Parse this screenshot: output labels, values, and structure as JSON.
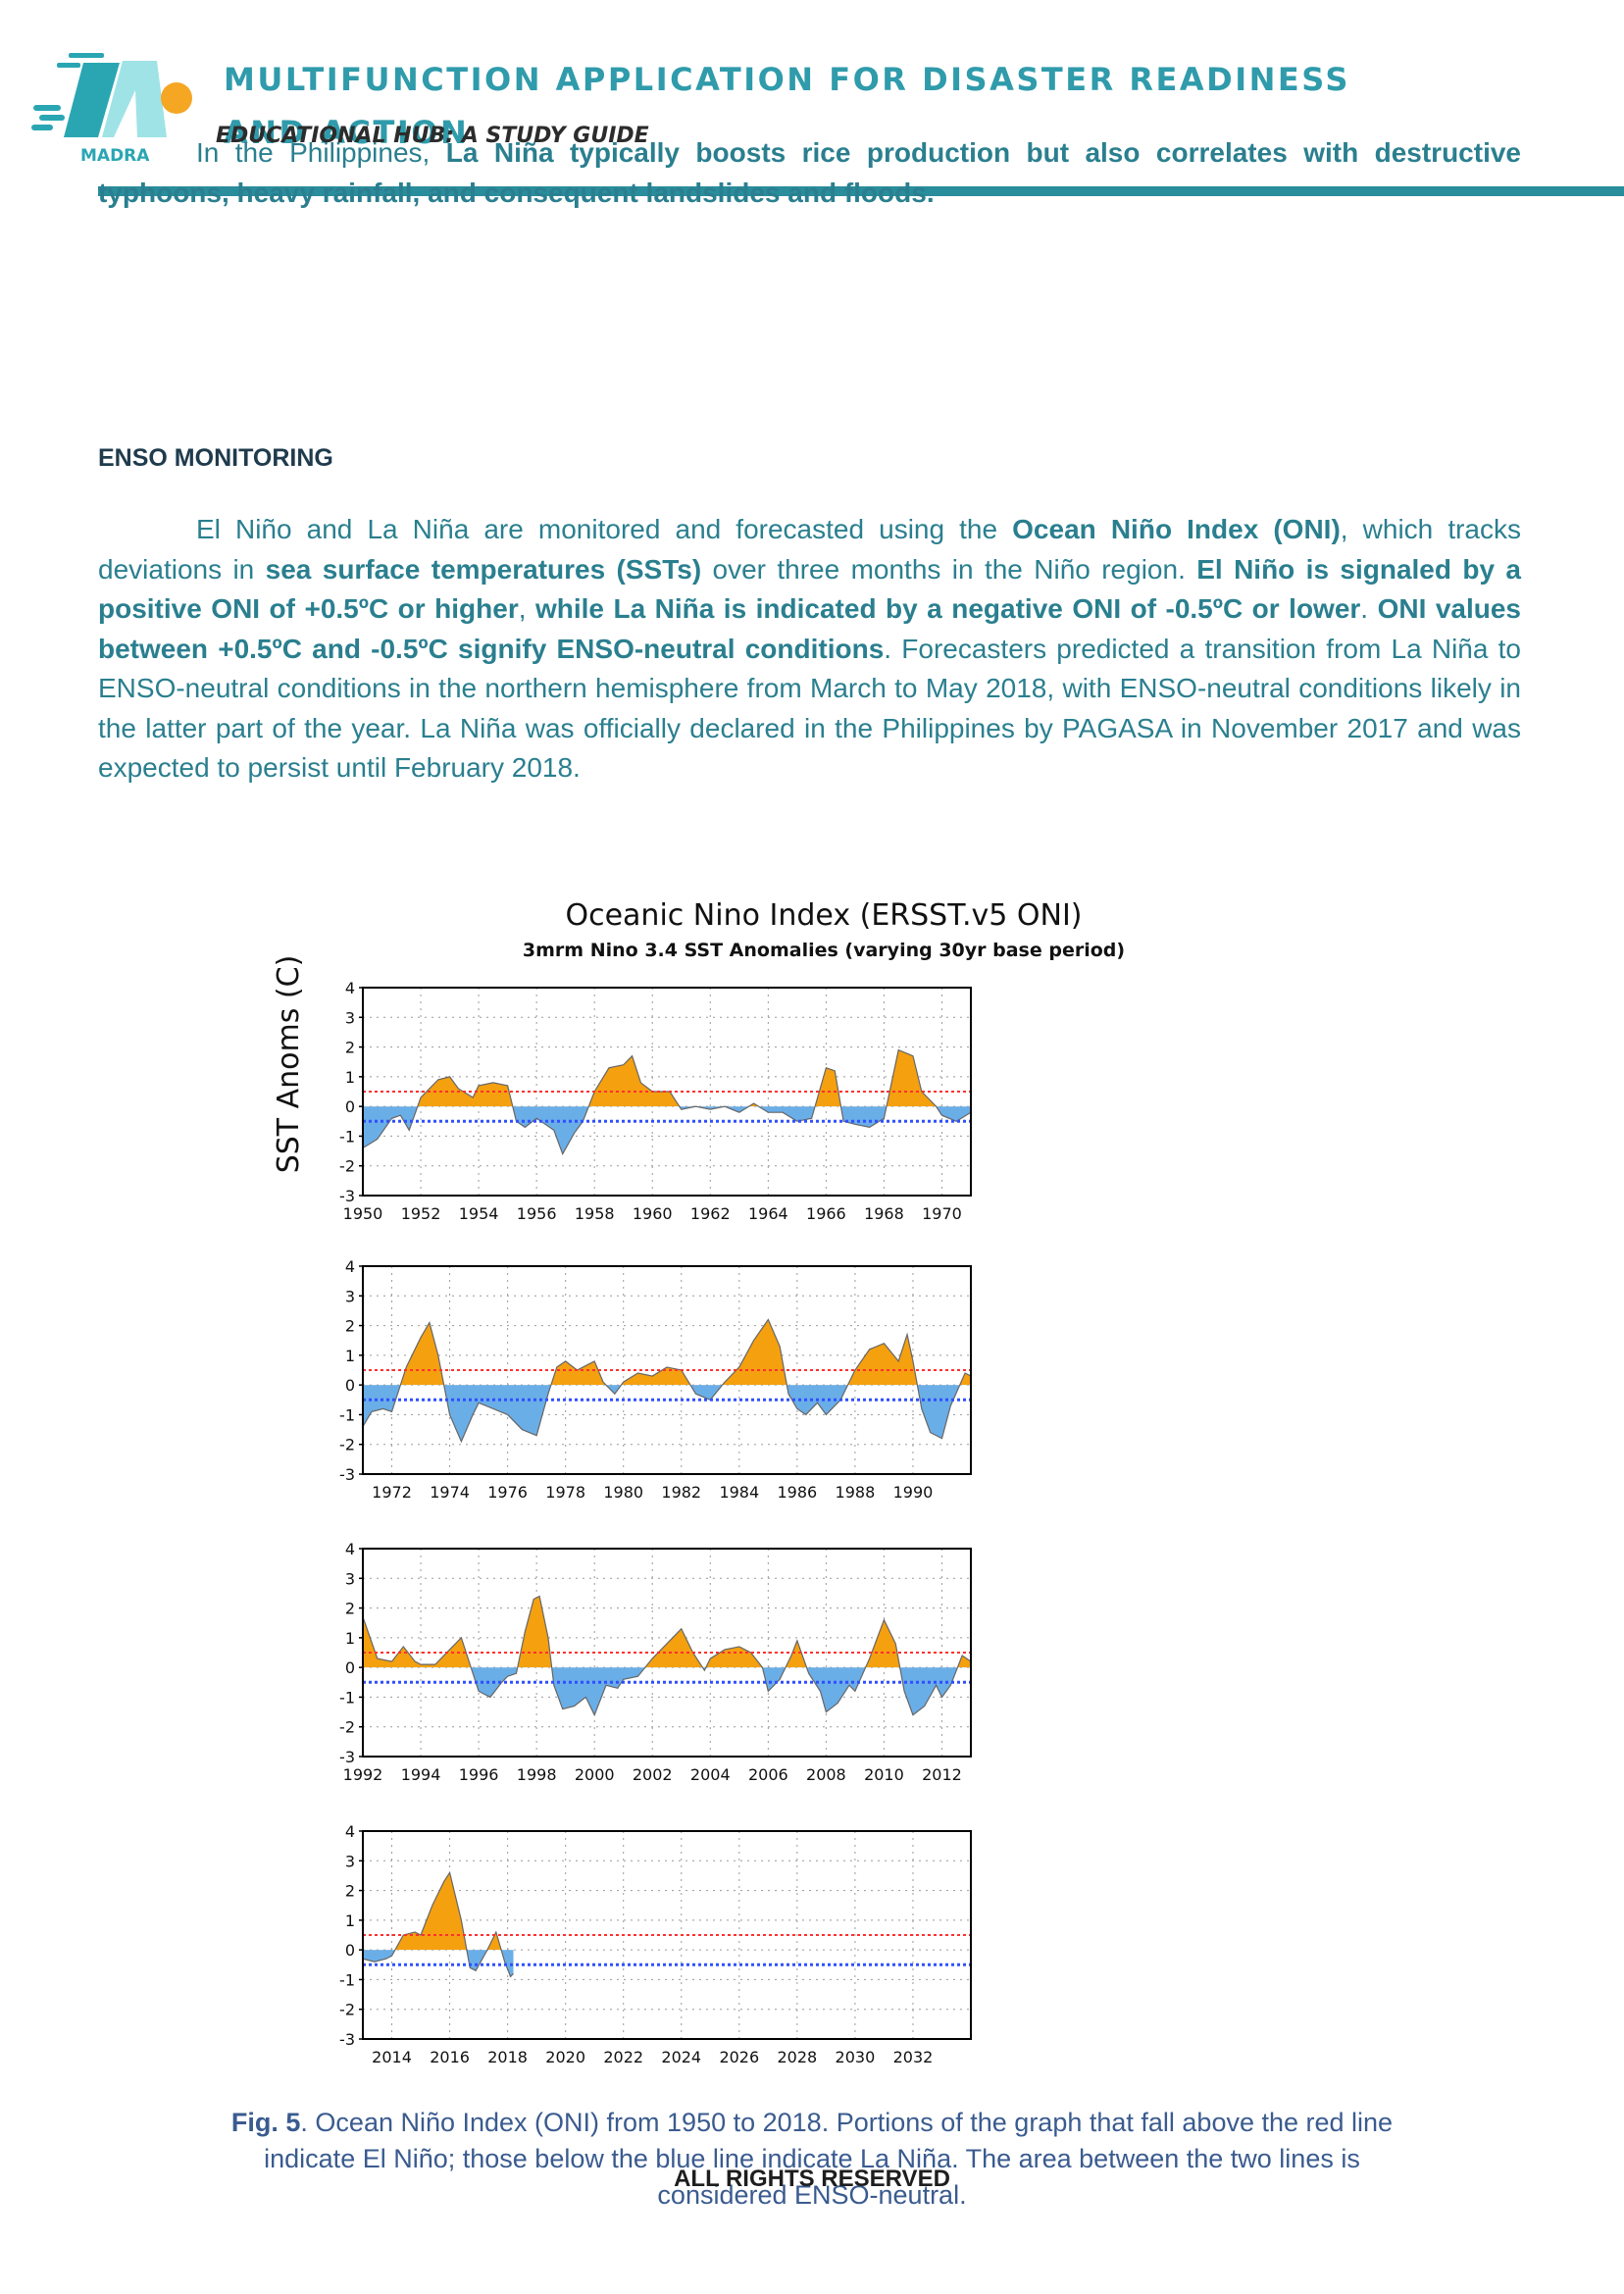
{
  "header": {
    "logo_text": "MADRA",
    "app_title_line1": "MULTIFUNCTION APPLICATION FOR DISASTER READINESS",
    "app_title_line2": "AND ACTION",
    "subtitle": "EDUCATIONAL HUB: A STUDY GUIDE"
  },
  "intro": {
    "text_1": "In the Philippines, ",
    "text_bold": "La Niña typically boosts rice production but also correlates with destructive typhoons, heavy rainfall, and consequent landslides and floods."
  },
  "section": {
    "heading": "ENSO MONITORING",
    "p1": "El Niño and La Niña are monitored and forecasted using the ",
    "b1": "Ocean Niño Index (ONI)",
    "p2": ", which tracks deviations in ",
    "b2": "sea surface temperatures (SSTs)",
    "p3": " over three months in the Niño region. ",
    "b3": "El Niño is signaled by a positive ONI of +0.5ºC or higher",
    "p4": ", ",
    "b4": "while La Niña is indicated by a negative ONI of -0.5ºC or lower",
    "p5": ". ",
    "b5": "ONI values between +0.5ºC and -0.5ºC signify ENSO-neutral conditions",
    "p6": ". Forecasters predicted a transition from La Niña to ENSO-neutral conditions in the northern hemisphere from March to May 2018, with ENSO-neutral conditions likely in the latter part of the year. La Niña was officially declared in the Philippines by PAGASA in November 2017 and was expected to persist until February 2018."
  },
  "chart_data": {
    "type": "area",
    "title": "Oceanic Nino Index (ERSST.v5 ONI)",
    "subtitle": "3mrm Nino 3.4 SST Anomalies (varying 30yr base period)",
    "ylabel": "SST Anoms (C)",
    "ylim": [
      -3,
      4
    ],
    "yticks": [
      "4",
      "3",
      "2",
      "1",
      "0",
      "-1",
      "-2",
      "-3"
    ],
    "grid": true,
    "thresholds": {
      "el_nino": 0.5,
      "la_nina": -0.5
    },
    "colors": {
      "positive": "#f5a00f",
      "negative": "#6aaee8",
      "el_nino_line": "#ff3030",
      "la_nina_line": "#3050ff"
    },
    "panels": [
      {
        "xlim": [
          1950,
          1971
        ],
        "xticks": [
          "1950",
          "1952",
          "1954",
          "1956",
          "1958",
          "1960",
          "1962",
          "1964",
          "1966",
          "1968",
          "1970"
        ],
        "points": [
          [
            1950,
            -1.4
          ],
          [
            1950.5,
            -1.1
          ],
          [
            1951,
            -0.4
          ],
          [
            1951.3,
            -0.3
          ],
          [
            1951.6,
            -0.8
          ],
          [
            1952,
            0.3
          ],
          [
            1952.6,
            0.9
          ],
          [
            1953,
            1.0
          ],
          [
            1953.3,
            0.6
          ],
          [
            1953.8,
            0.3
          ],
          [
            1954,
            0.7
          ],
          [
            1954.5,
            0.8
          ],
          [
            1955,
            0.7
          ],
          [
            1955.3,
            -0.5
          ],
          [
            1955.6,
            -0.7
          ],
          [
            1956,
            -0.4
          ],
          [
            1956.3,
            -0.6
          ],
          [
            1956.6,
            -0.8
          ],
          [
            1956.9,
            -1.6
          ],
          [
            1957.3,
            -0.9
          ],
          [
            1957.6,
            -0.5
          ],
          [
            1958,
            0.5
          ],
          [
            1958.5,
            1.3
          ],
          [
            1959,
            1.4
          ],
          [
            1959.3,
            1.7
          ],
          [
            1959.6,
            0.8
          ],
          [
            1960,
            0.5
          ],
          [
            1960.6,
            0.5
          ],
          [
            1961,
            -0.1
          ],
          [
            1961.5,
            0.0
          ],
          [
            1962,
            -0.1
          ],
          [
            1962.5,
            0.0
          ],
          [
            1963,
            -0.2
          ],
          [
            1963.5,
            0.1
          ],
          [
            1964,
            -0.2
          ],
          [
            1964.5,
            -0.2
          ],
          [
            1965,
            -0.5
          ],
          [
            1965.5,
            -0.4
          ],
          [
            1966,
            1.3
          ],
          [
            1966.3,
            1.2
          ],
          [
            1966.6,
            -0.5
          ],
          [
            1967,
            -0.6
          ],
          [
            1967.5,
            -0.7
          ],
          [
            1968,
            -0.4
          ],
          [
            1968.5,
            1.9
          ],
          [
            1969,
            1.7
          ],
          [
            1969.3,
            0.5
          ],
          [
            1969.8,
            0.0
          ],
          [
            1970,
            -0.3
          ],
          [
            1970.5,
            -0.5
          ],
          [
            1971,
            -0.2
          ],
          [
            1971,
            -0.1
          ]
        ]
      },
      {
        "xlim": [
          1971,
          1992
        ],
        "xticks": [
          "1972",
          "1974",
          "1976",
          "1978",
          "1980",
          "1982",
          "1984",
          "1986",
          "1988",
          "1990"
        ],
        "points": [
          [
            1971,
            -1.4
          ],
          [
            1971.3,
            -0.9
          ],
          [
            1971.7,
            -0.8
          ],
          [
            1972,
            -0.9
          ],
          [
            1972.5,
            0.6
          ],
          [
            1973,
            1.6
          ],
          [
            1973.3,
            2.1
          ],
          [
            1973.6,
            1.0
          ],
          [
            1974,
            -1.0
          ],
          [
            1974.4,
            -1.9
          ],
          [
            1974.8,
            -1.0
          ],
          [
            1975,
            -0.6
          ],
          [
            1975.5,
            -0.8
          ],
          [
            1976,
            -1.0
          ],
          [
            1976.5,
            -1.5
          ],
          [
            1977,
            -1.7
          ],
          [
            1977.4,
            -0.3
          ],
          [
            1977.7,
            0.6
          ],
          [
            1978,
            0.8
          ],
          [
            1978.4,
            0.5
          ],
          [
            1978.8,
            0.7
          ],
          [
            1979,
            0.8
          ],
          [
            1979.3,
            0.1
          ],
          [
            1979.7,
            -0.3
          ],
          [
            1980,
            0.1
          ],
          [
            1980.5,
            0.4
          ],
          [
            1981,
            0.3
          ],
          [
            1981.5,
            0.6
          ],
          [
            1982,
            0.5
          ],
          [
            1982.5,
            -0.3
          ],
          [
            1983,
            -0.5
          ],
          [
            1983.5,
            0.1
          ],
          [
            1984,
            0.6
          ],
          [
            1984.5,
            1.5
          ],
          [
            1985,
            2.2
          ],
          [
            1985.4,
            1.3
          ],
          [
            1985.7,
            -0.3
          ],
          [
            1986,
            -0.8
          ],
          [
            1986.3,
            -1.0
          ],
          [
            1986.7,
            -0.6
          ],
          [
            1987,
            -1.0
          ],
          [
            1987.5,
            -0.5
          ],
          [
            1988,
            0.5
          ],
          [
            1988.5,
            1.2
          ],
          [
            1989,
            1.4
          ],
          [
            1989.5,
            0.8
          ],
          [
            1989.8,
            1.7
          ],
          [
            1990,
            0.8
          ],
          [
            1990.3,
            -0.8
          ],
          [
            1990.6,
            -1.6
          ],
          [
            1991,
            -1.8
          ],
          [
            1991.3,
            -0.7
          ],
          [
            1991.8,
            0.4
          ],
          [
            1992,
            0.3
          ]
        ]
      },
      {
        "xlim": [
          1992,
          2013
        ],
        "xticks": [
          "1992",
          "1994",
          "1996",
          "1998",
          "2000",
          "2002",
          "2004",
          "2006",
          "2008",
          "2010",
          "2012"
        ],
        "points": [
          [
            1992,
            1.7
          ],
          [
            1992.5,
            0.3
          ],
          [
            1993,
            0.2
          ],
          [
            1993.4,
            0.7
          ],
          [
            1993.8,
            0.2
          ],
          [
            1994,
            0.1
          ],
          [
            1994.5,
            0.1
          ],
          [
            1995,
            0.6
          ],
          [
            1995.4,
            1.0
          ],
          [
            1995.8,
            -0.2
          ],
          [
            1996,
            -0.8
          ],
          [
            1996.4,
            -1.0
          ],
          [
            1996.8,
            -0.5
          ],
          [
            1997,
            -0.3
          ],
          [
            1997.3,
            -0.2
          ],
          [
            1997.6,
            1.2
          ],
          [
            1997.9,
            2.3
          ],
          [
            1998.1,
            2.4
          ],
          [
            1998.4,
            1.0
          ],
          [
            1998.6,
            -0.6
          ],
          [
            1998.9,
            -1.4
          ],
          [
            1999.3,
            -1.3
          ],
          [
            1999.7,
            -1.0
          ],
          [
            2000,
            -1.6
          ],
          [
            2000.4,
            -0.6
          ],
          [
            2000.8,
            -0.7
          ],
          [
            2001,
            -0.4
          ],
          [
            2001.5,
            -0.3
          ],
          [
            2002,
            0.3
          ],
          [
            2002.5,
            0.8
          ],
          [
            2003,
            1.3
          ],
          [
            2003.4,
            0.5
          ],
          [
            2003.8,
            -0.1
          ],
          [
            2004,
            0.3
          ],
          [
            2004.5,
            0.6
          ],
          [
            2005,
            0.7
          ],
          [
            2005.4,
            0.5
          ],
          [
            2005.8,
            0.0
          ],
          [
            2006,
            -0.8
          ],
          [
            2006.4,
            -0.4
          ],
          [
            2006.8,
            0.4
          ],
          [
            2007,
            0.9
          ],
          [
            2007.4,
            -0.2
          ],
          [
            2007.8,
            -0.8
          ],
          [
            2008,
            -1.5
          ],
          [
            2008.4,
            -1.2
          ],
          [
            2008.8,
            -0.6
          ],
          [
            2009,
            -0.8
          ],
          [
            2009.5,
            0.3
          ],
          [
            2010,
            1.6
          ],
          [
            2010.4,
            0.8
          ],
          [
            2010.7,
            -0.8
          ],
          [
            2011,
            -1.6
          ],
          [
            2011.4,
            -1.3
          ],
          [
            2011.8,
            -0.6
          ],
          [
            2012,
            -1.0
          ],
          [
            2012.3,
            -0.6
          ],
          [
            2012.7,
            0.4
          ],
          [
            2013,
            0.2
          ]
        ]
      },
      {
        "xlim": [
          2013,
          2034
        ],
        "xticks": [
          "2014",
          "2016",
          "2018",
          "2020",
          "2022",
          "2024",
          "2026",
          "2028",
          "2030",
          "2032"
        ],
        "points": [
          [
            2013,
            -0.3
          ],
          [
            2013.4,
            -0.4
          ],
          [
            2013.8,
            -0.3
          ],
          [
            2014,
            -0.2
          ],
          [
            2014.4,
            0.5
          ],
          [
            2014.8,
            0.6
          ],
          [
            2015,
            0.5
          ],
          [
            2015.4,
            1.5
          ],
          [
            2015.8,
            2.3
          ],
          [
            2016,
            2.6
          ],
          [
            2016.4,
            1.0
          ],
          [
            2016.7,
            -0.6
          ],
          [
            2016.9,
            -0.7
          ],
          [
            2017.3,
            0.0
          ],
          [
            2017.6,
            0.6
          ],
          [
            2017.9,
            -0.4
          ],
          [
            2018.1,
            -0.9
          ],
          [
            2018.2,
            -0.8
          ]
        ]
      }
    ]
  },
  "figure": {
    "label": "Fig. 5",
    "caption": ". Ocean Niño Index (ONI) from 1950 to 2018. Portions of the graph that fall above the red line indicate El Niño; those below the blue line indicate La Niña. The area between the two lines is considered ENSO-neutral."
  },
  "footer": {
    "text": "ALL RIGHTS RESERVED"
  }
}
